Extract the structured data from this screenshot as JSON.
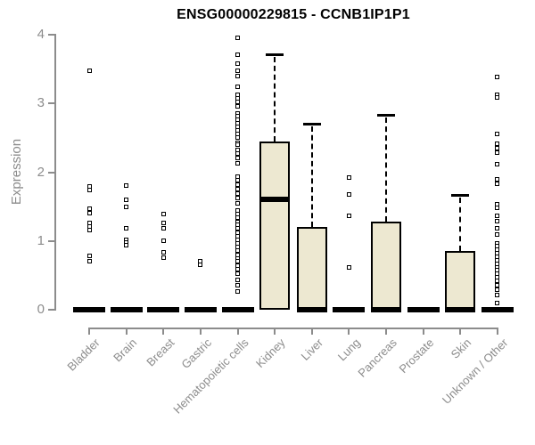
{
  "page": {
    "background": "#ffffff"
  },
  "chart_data": {
    "type": "boxplot",
    "title": "ENSG00000229815 - CCNB1IP1P1",
    "ylabel": "Expression",
    "xlabel": "",
    "ylim": [
      0,
      4
    ],
    "yticks": [
      0,
      1,
      2,
      3,
      4
    ],
    "grid": false,
    "legend": "none",
    "colors": {
      "box_fill": "#ede8d1",
      "box_border": "#000000",
      "median": "#000000",
      "axis": "#8c8c8c",
      "axis_text": "#8c8c8c",
      "title_text": "#000000",
      "outlier_fill": "#ffffff",
      "outlier_border": "#000000"
    },
    "categories": [
      "Bladder",
      "Brain",
      "Breast",
      "Gastric",
      "Hematopoietic cells",
      "Kidney",
      "Liver",
      "Lung",
      "Pancreas",
      "Prostate",
      "Skin",
      "Unknown / Other"
    ],
    "series": [
      {
        "name": "Bladder",
        "q1": 0,
        "median": 0,
        "q3": 0,
        "whisker_low": 0,
        "whisker_high": 0,
        "outliers": [
          3.47,
          1.79,
          1.74,
          1.47,
          1.4,
          1.26,
          1.21,
          1.16,
          0.78,
          0.71
        ]
      },
      {
        "name": "Brain",
        "q1": 0,
        "median": 0,
        "q3": 0,
        "whisker_low": 0,
        "whisker_high": 0,
        "outliers": [
          1.81,
          1.6,
          1.49,
          1.19,
          1.02,
          0.98,
          0.94
        ]
      },
      {
        "name": "Breast",
        "q1": 0,
        "median": 0,
        "q3": 0,
        "whisker_low": 0,
        "whisker_high": 0,
        "outliers": [
          1.39,
          1.26,
          1.19,
          1.0,
          0.84,
          0.76
        ]
      },
      {
        "name": "Gastric",
        "q1": 0,
        "median": 0,
        "q3": 0,
        "whisker_low": 0,
        "whisker_high": 0,
        "outliers": [
          0.7,
          0.66
        ]
      },
      {
        "name": "Hematopoietic cells",
        "q1": 0,
        "median": 0,
        "q3": 0,
        "whisker_low": 0,
        "whisker_high": 0,
        "outliers": [
          3.95,
          3.71,
          3.58,
          3.48,
          3.4,
          3.24,
          3.12,
          3.07,
          3.02,
          2.96,
          2.86,
          2.81,
          2.76,
          2.71,
          2.66,
          2.61,
          2.56,
          2.51,
          2.43,
          2.4,
          2.33,
          2.27,
          2.21,
          2.13,
          1.94,
          1.88,
          1.82,
          1.76,
          1.69,
          1.63,
          1.55,
          1.44,
          1.39,
          1.34,
          1.28,
          1.23,
          1.18,
          1.12,
          1.07,
          1.02,
          0.96,
          0.91,
          0.86,
          0.8,
          0.75,
          0.7,
          0.64,
          0.59,
          0.53,
          0.43,
          0.35,
          0.27
        ]
      },
      {
        "name": "Kidney",
        "q1": 0,
        "median": 1.6,
        "q3": 2.45,
        "whisker_low": 0,
        "whisker_high": 3.72,
        "outliers": []
      },
      {
        "name": "Liver",
        "q1": 0,
        "median": 0,
        "q3": 1.21,
        "whisker_low": 0,
        "whisker_high": 2.7,
        "outliers": []
      },
      {
        "name": "Lung",
        "q1": 0,
        "median": 0,
        "q3": 0,
        "whisker_low": 0,
        "whisker_high": 0,
        "outliers": [
          1.92,
          1.67,
          1.37,
          0.62
        ]
      },
      {
        "name": "Pancreas",
        "q1": 0,
        "median": 0,
        "q3": 1.28,
        "whisker_low": 0,
        "whisker_high": 2.83,
        "outliers": []
      },
      {
        "name": "Prostate",
        "q1": 0,
        "median": 0,
        "q3": 0,
        "whisker_low": 0,
        "whisker_high": 0,
        "outliers": []
      },
      {
        "name": "Skin",
        "q1": 0,
        "median": 0,
        "q3": 0.85,
        "whisker_low": 0,
        "whisker_high": 1.67,
        "outliers": []
      },
      {
        "name": "Unknown / Other",
        "q1": 0,
        "median": 0,
        "q3": 0,
        "whisker_low": 0,
        "whisker_high": 0,
        "outliers": [
          3.38,
          3.13,
          3.09,
          2.56,
          2.41,
          2.35,
          2.28,
          2.12,
          1.89,
          1.83,
          1.54,
          1.48,
          1.37,
          1.29,
          1.18,
          1.09,
          0.97,
          0.92,
          0.87,
          0.82,
          0.77,
          0.72,
          0.67,
          0.62,
          0.57,
          0.52,
          0.47,
          0.42,
          0.36,
          0.29,
          0.21,
          0.1
        ]
      }
    ]
  }
}
